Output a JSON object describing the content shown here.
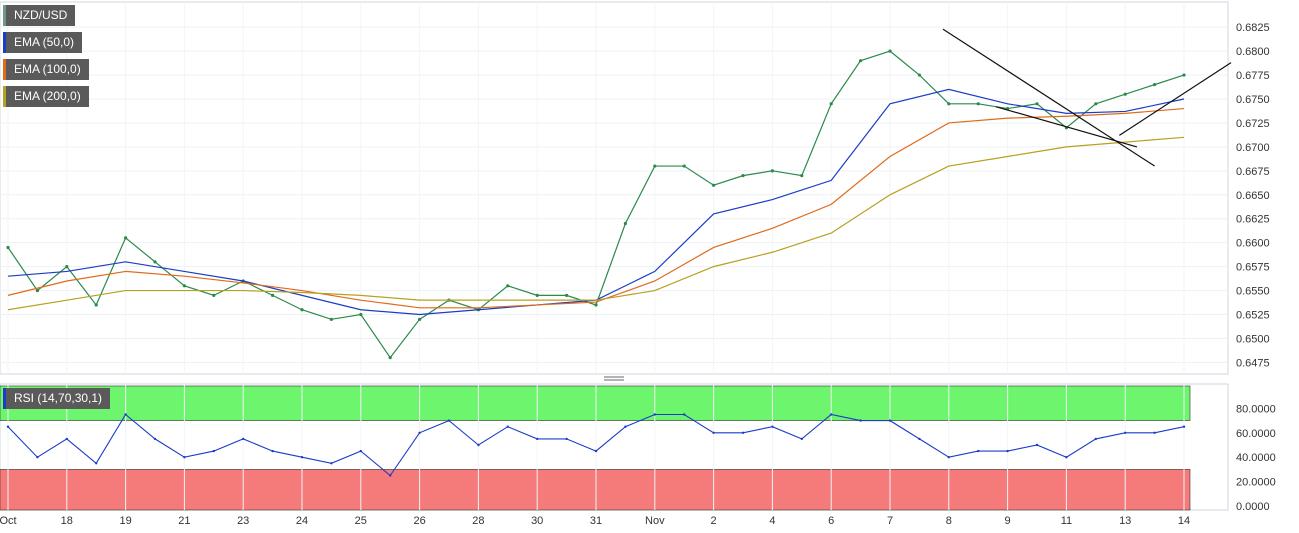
{
  "price_legend": [
    {
      "label": "NZD/USD",
      "color": "#6a9a8a"
    },
    {
      "label": "EMA (50,0)",
      "color": "#1a3cc8"
    },
    {
      "label": "EMA (100,0)",
      "color": "#e06a1a"
    },
    {
      "label": "EMA (200,0)",
      "color": "#b8a020"
    }
  ],
  "rsi_legend": {
    "label": "RSI (14,70,30,1)",
    "color": "#1a3cc8"
  },
  "chart_data": [
    {
      "type": "line",
      "title": "NZD/USD",
      "ylim": [
        0.6465,
        0.6845
      ],
      "yticks": [
        "0.6825",
        "0.6800",
        "0.6775",
        "0.6750",
        "0.6725",
        "0.6700",
        "0.6675",
        "0.6650",
        "0.6625",
        "0.6600",
        "0.6575",
        "0.6550",
        "0.6525",
        "0.6500",
        "0.6475"
      ],
      "xticks": [
        "Oct",
        "18",
        "19",
        "21",
        "23",
        "24",
        "25",
        "26",
        "28",
        "30",
        "31",
        "Nov",
        "2",
        "4",
        "6",
        "7",
        "8",
        "9",
        "11",
        "13",
        "14"
      ],
      "xrange": [
        0,
        20
      ],
      "series": [
        {
          "name": "NZD/USD",
          "color": "#2a8a4a",
          "x": [
            0,
            0.5,
            1,
            1.5,
            2,
            2.5,
            3,
            3.5,
            4,
            4.5,
            5,
            5.5,
            6,
            6.5,
            7,
            7.5,
            8,
            8.5,
            9,
            9.5,
            10,
            10.5,
            11,
            11.5,
            12,
            12.5,
            13,
            13.5,
            14,
            14.5,
            15,
            15.5,
            16,
            16.5,
            17,
            17.5,
            18,
            18.5,
            19,
            19.5,
            20
          ],
          "values": [
            0.6595,
            0.655,
            0.6575,
            0.6535,
            0.6605,
            0.658,
            0.6555,
            0.6545,
            0.656,
            0.6545,
            0.653,
            0.652,
            0.6525,
            0.648,
            0.652,
            0.654,
            0.653,
            0.6555,
            0.6545,
            0.6545,
            0.6535,
            0.662,
            0.668,
            0.668,
            0.666,
            0.667,
            0.6675,
            0.667,
            0.6745,
            0.679,
            0.68,
            0.6775,
            0.6745,
            0.6745,
            0.674,
            0.6745,
            0.672,
            0.6745,
            0.6755,
            0.6765,
            0.6775
          ]
        },
        {
          "name": "EMA (50,0)",
          "color": "#1a3cc8",
          "x": [
            0,
            1,
            2,
            3,
            4,
            5,
            6,
            7,
            8,
            9,
            10,
            11,
            12,
            13,
            14,
            15,
            16,
            17,
            18,
            19,
            20
          ],
          "values": [
            0.6565,
            0.657,
            0.658,
            0.657,
            0.656,
            0.6545,
            0.653,
            0.6525,
            0.653,
            0.6535,
            0.654,
            0.657,
            0.663,
            0.6645,
            0.6665,
            0.6745,
            0.676,
            0.6745,
            0.6735,
            0.6737,
            0.675
          ]
        },
        {
          "name": "EMA (100,0)",
          "color": "#e06a1a",
          "x": [
            0,
            1,
            2,
            3,
            4,
            5,
            6,
            7,
            8,
            9,
            10,
            11,
            12,
            13,
            14,
            15,
            16,
            17,
            18,
            19,
            20
          ],
          "values": [
            0.6545,
            0.656,
            0.657,
            0.6565,
            0.6558,
            0.655,
            0.654,
            0.6532,
            0.6532,
            0.6535,
            0.6538,
            0.656,
            0.6595,
            0.6615,
            0.664,
            0.669,
            0.6725,
            0.673,
            0.6732,
            0.6735,
            0.674
          ]
        },
        {
          "name": "EMA (200,0)",
          "color": "#b8a020",
          "x": [
            0,
            1,
            2,
            3,
            4,
            5,
            6,
            7,
            8,
            9,
            10,
            11,
            12,
            13,
            14,
            15,
            16,
            17,
            18,
            19,
            20
          ],
          "values": [
            0.653,
            0.654,
            0.655,
            0.655,
            0.655,
            0.6548,
            0.6545,
            0.654,
            0.654,
            0.654,
            0.654,
            0.655,
            0.6575,
            0.659,
            0.661,
            0.665,
            0.668,
            0.669,
            0.67,
            0.6705,
            0.671
          ]
        }
      ],
      "trendlines": [
        {
          "from": [
            15.9,
            0.6823
          ],
          "to": [
            19.5,
            0.668
          ]
        },
        {
          "from": [
            16.8,
            0.6742
          ],
          "to": [
            19.2,
            0.67
          ]
        },
        {
          "from": [
            18.9,
            0.6712
          ],
          "to": [
            20.8,
            0.6788
          ]
        }
      ]
    },
    {
      "type": "line",
      "title": "RSI (14,70,30,1)",
      "ylim": [
        0,
        100
      ],
      "yticks": [
        "80.0000",
        "60.0000",
        "40.0000",
        "20.0000",
        "0.0000"
      ],
      "overbought": 70,
      "oversold": 30,
      "overbought_color": "#6ef56e",
      "oversold_color": "#f57a7a",
      "series": [
        {
          "name": "RSI",
          "color": "#1a3cc8",
          "x": [
            0,
            0.5,
            1,
            1.5,
            2,
            2.5,
            3,
            3.5,
            4,
            4.5,
            5,
            5.5,
            6,
            6.5,
            7,
            7.5,
            8,
            8.5,
            9,
            9.5,
            10,
            10.5,
            11,
            11.5,
            12,
            12.5,
            13,
            13.5,
            14,
            14.5,
            15,
            15.5,
            16,
            16.5,
            17,
            17.5,
            18,
            18.5,
            19,
            19.5,
            20
          ],
          "values": [
            65,
            40,
            55,
            35,
            75,
            55,
            40,
            45,
            55,
            45,
            40,
            35,
            45,
            25,
            60,
            70,
            50,
            65,
            55,
            55,
            45,
            65,
            75,
            75,
            60,
            60,
            65,
            55,
            75,
            70,
            70,
            55,
            40,
            45,
            45,
            50,
            40,
            55,
            60,
            60,
            65
          ]
        }
      ]
    }
  ]
}
